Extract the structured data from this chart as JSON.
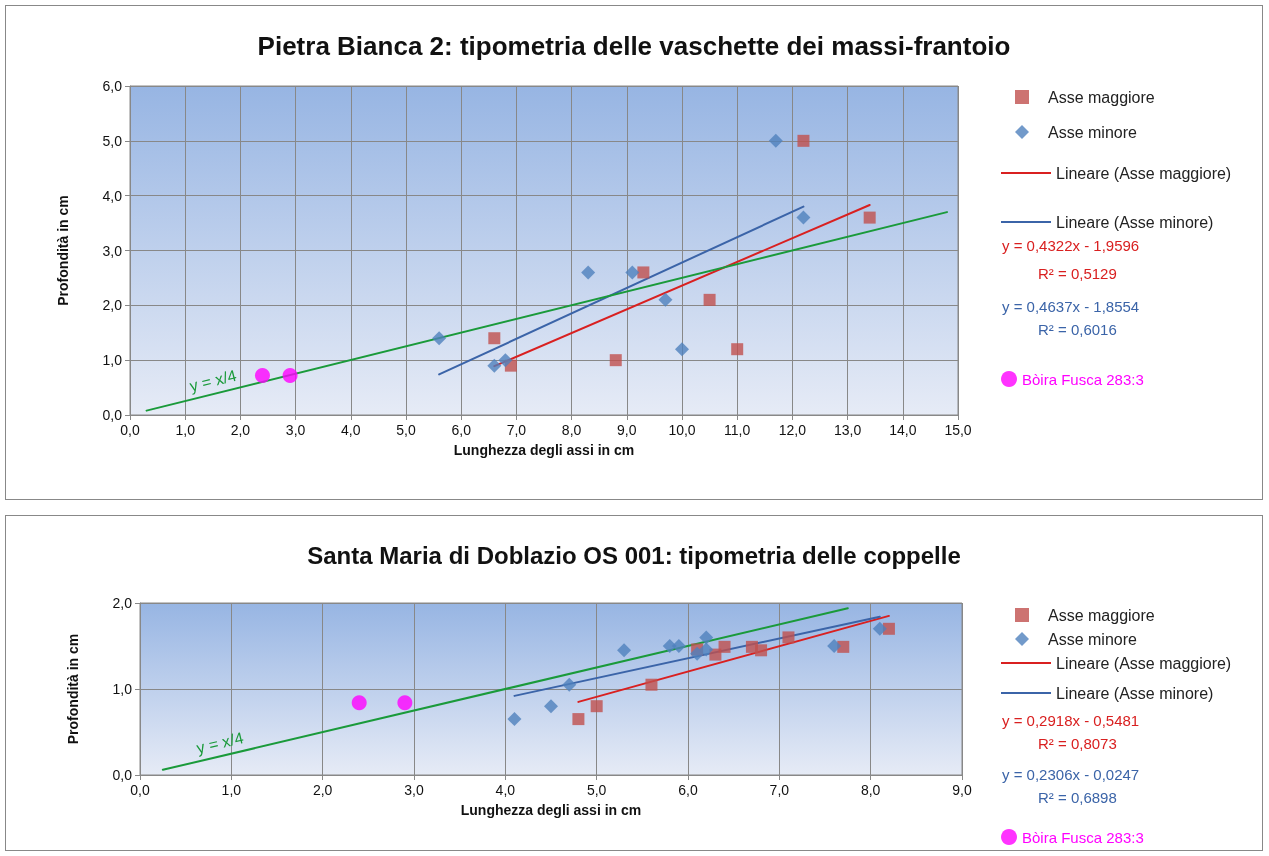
{
  "chart_data": [
    {
      "type": "scatter",
      "title": "Pietra Bianca 2: tipometria delle vaschette dei massi-frantoio",
      "xlabel": "Lunghezza degli assi in cm",
      "ylabel": "Profondità in cm",
      "xlim": [
        0,
        15
      ],
      "ylim": [
        0,
        6
      ],
      "xticks": [
        {
          "value": 0,
          "label": "0,0"
        },
        {
          "value": 1,
          "label": "1,0"
        },
        {
          "value": 2,
          "label": "2,0"
        },
        {
          "value": 3,
          "label": "3,0"
        },
        {
          "value": 4,
          "label": "4,0"
        },
        {
          "value": 5,
          "label": "5,0"
        },
        {
          "value": 6,
          "label": "6,0"
        },
        {
          "value": 7,
          "label": "7,0"
        },
        {
          "value": 8,
          "label": "8,0"
        },
        {
          "value": 9,
          "label": "9,0"
        },
        {
          "value": 10,
          "label": "10,0"
        },
        {
          "value": 11,
          "label": "11,0"
        },
        {
          "value": 12,
          "label": "12,0"
        },
        {
          "value": 13,
          "label": "13,0"
        },
        {
          "value": 14,
          "label": "14,0"
        },
        {
          "value": 15,
          "label": "15,0"
        }
      ],
      "yticks": [
        {
          "value": 0,
          "label": "0,0"
        },
        {
          "value": 1,
          "label": "1,0"
        },
        {
          "value": 2,
          "label": "2,0"
        },
        {
          "value": 3,
          "label": "3,0"
        },
        {
          "value": 4,
          "label": "4,0"
        },
        {
          "value": 5,
          "label": "5,0"
        },
        {
          "value": 6,
          "label": "6,0"
        }
      ],
      "grid": true,
      "legend": "right",
      "series": [
        {
          "name": "Asse maggiore",
          "type": "scatter",
          "marker": "square",
          "color": "#c0504d",
          "x": [
            6.6,
            6.9,
            8.8,
            9.3,
            10.5,
            11.0,
            12.2,
            13.4
          ],
          "values": [
            1.4,
            0.9,
            1.0,
            2.6,
            2.1,
            1.2,
            5.0,
            3.6
          ]
        },
        {
          "name": "Asse minore",
          "type": "scatter",
          "marker": "diamond",
          "color": "#4f81bd",
          "x": [
            5.6,
            6.6,
            6.8,
            8.3,
            9.1,
            9.7,
            10.0,
            11.7,
            12.2
          ],
          "values": [
            1.4,
            0.9,
            1.0,
            2.6,
            2.6,
            2.1,
            1.2,
            5.0,
            3.6
          ]
        },
        {
          "name": "Lineare (Asse maggiore)",
          "type": "line",
          "marker": "none",
          "color": "#d92020",
          "x": [
            6.6,
            13.4
          ],
          "values": [
            0.89,
            3.83
          ]
        },
        {
          "name": "Lineare (Asse minore)",
          "type": "line",
          "marker": "none",
          "color": "#3b64a8",
          "x": [
            5.6,
            12.2
          ],
          "values": [
            0.74,
            3.8
          ]
        },
        {
          "type": "line",
          "marker": "none",
          "color": "#1a9a3a",
          "x": [
            0.3,
            14.8
          ],
          "values": [
            0.08,
            3.7
          ]
        },
        {
          "name": "Bòira Fusca 283:3",
          "type": "scatter",
          "marker": "circle",
          "color": "#ff00ff",
          "x": [
            2.4,
            2.9
          ],
          "values": [
            0.72,
            0.72
          ]
        }
      ],
      "annotations": [
        "y = x/4",
        "y = 0,4322x - 1,9596",
        "R² = 0,5129",
        "y = 0,4637x - 1,8554",
        "R² = 0,6016"
      ]
    },
    {
      "type": "scatter",
      "title": "Santa Maria di Doblazio OS 001: tipometria delle coppelle",
      "xlabel": "Lunghezza degli assi in cm",
      "ylabel": "Profondità in cm",
      "xlim": [
        0,
        9
      ],
      "ylim": [
        0,
        2
      ],
      "xticks": [
        {
          "value": 0,
          "label": "0,0"
        },
        {
          "value": 1,
          "label": "1,0"
        },
        {
          "value": 2,
          "label": "2,0"
        },
        {
          "value": 3,
          "label": "3,0"
        },
        {
          "value": 4,
          "label": "4,0"
        },
        {
          "value": 5,
          "label": "5,0"
        },
        {
          "value": 6,
          "label": "6,0"
        },
        {
          "value": 7,
          "label": "7,0"
        },
        {
          "value": 8,
          "label": "8,0"
        },
        {
          "value": 9,
          "label": "9,0"
        }
      ],
      "yticks": [
        {
          "value": 0,
          "label": "0,0"
        },
        {
          "value": 1,
          "label": "1,0"
        },
        {
          "value": 2,
          "label": "2,0"
        }
      ],
      "grid": true,
      "legend": "right",
      "series": [
        {
          "name": "Asse maggiore",
          "type": "scatter",
          "marker": "square",
          "color": "#c0504d",
          "x": [
            4.8,
            5.0,
            5.6,
            6.1,
            6.3,
            6.4,
            6.7,
            6.8,
            7.1,
            7.7,
            8.2
          ],
          "values": [
            0.65,
            0.8,
            1.05,
            1.46,
            1.4,
            1.49,
            1.49,
            1.45,
            1.6,
            1.49,
            1.7
          ]
        },
        {
          "name": "Asse minore",
          "type": "scatter",
          "marker": "diamond",
          "color": "#4f81bd",
          "x": [
            4.1,
            4.5,
            4.7,
            5.3,
            5.8,
            5.9,
            6.1,
            6.2,
            6.2,
            7.6,
            8.1
          ],
          "values": [
            0.65,
            0.8,
            1.05,
            1.45,
            1.5,
            1.5,
            1.41,
            1.6,
            1.46,
            1.5,
            1.7
          ]
        },
        {
          "name": "Lineare (Asse maggiore)",
          "type": "line",
          "marker": "none",
          "color": "#d92020",
          "x": [
            4.8,
            8.2
          ],
          "values": [
            0.85,
            1.85
          ]
        },
        {
          "name": "Lineare (Asse minore)",
          "type": "line",
          "marker": "none",
          "color": "#3b64a8",
          "x": [
            4.1,
            8.1
          ],
          "values": [
            0.92,
            1.84
          ]
        },
        {
          "type": "line",
          "marker": "none",
          "color": "#1a9a3a",
          "x": [
            0.25,
            7.75
          ],
          "values": [
            0.06,
            1.94
          ]
        },
        {
          "name": "Bòira Fusca 283:3",
          "type": "scatter",
          "marker": "circle",
          "color": "#ff00ff",
          "x": [
            2.4,
            2.9
          ],
          "values": [
            0.84,
            0.84
          ]
        }
      ],
      "annotations": [
        "y = x/4",
        "y = 0,2918x - 0,5481",
        "R² = 0,8073",
        "y = 0,2306x - 0,0247",
        "R² = 0,6898"
      ]
    }
  ]
}
